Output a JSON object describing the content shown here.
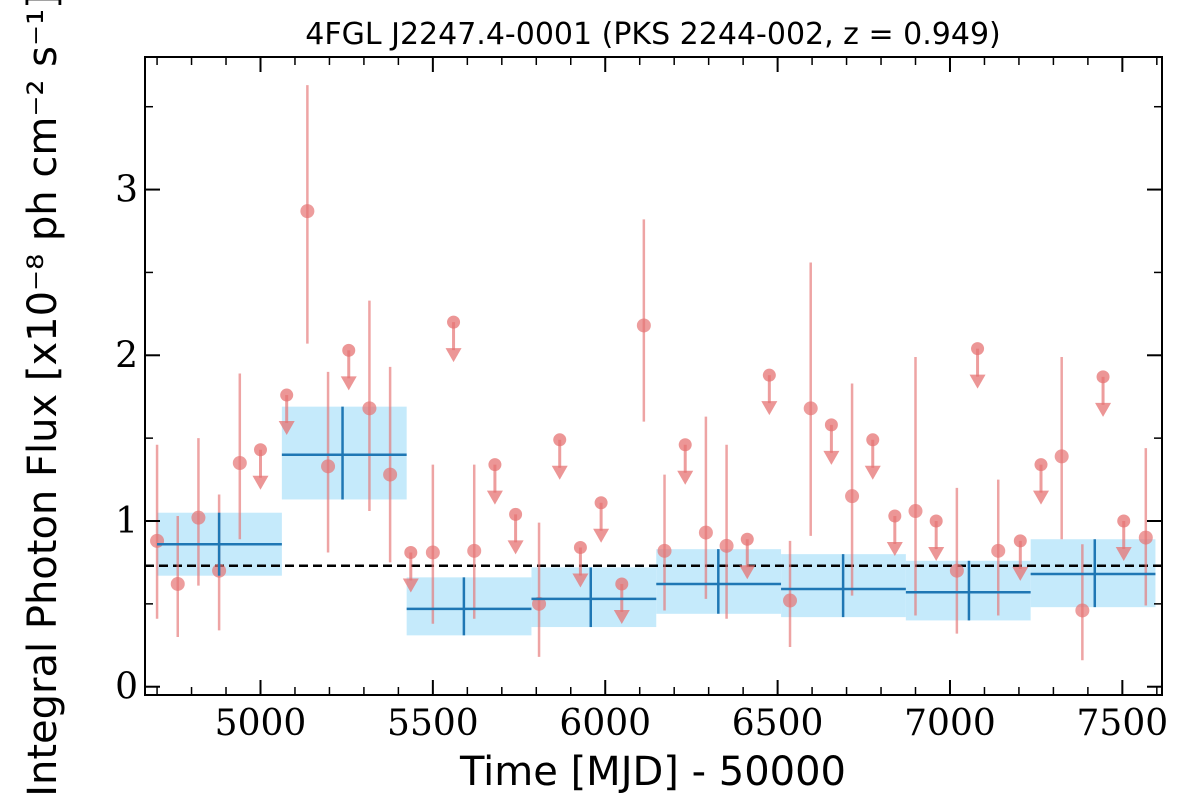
{
  "chart_data": {
    "type": "scatter",
    "title": "4FGL J2247.4-0001 (PKS 2244-002, z = 0.949)",
    "xlabel": "Time [MJD] - 50000",
    "ylabel": "Integral Photon Flux [x10⁻⁸ ph cm⁻² s⁻¹]",
    "xlim": [
      4665,
      7615
    ],
    "ylim": [
      -0.05,
      3.8
    ],
    "xticks": [
      5000,
      5500,
      6000,
      6500,
      7000,
      7500
    ],
    "yticks": [
      0,
      1,
      2,
      3
    ],
    "mean_flux": 0.73,
    "colors": {
      "points": "#e57373",
      "bins_line": "#1f77b4",
      "bins_band": "#bfe8fb",
      "mean_line": "#000000"
    },
    "binned": [
      {
        "x0": 4700,
        "x1": 5062,
        "xc": 4880,
        "y": 0.86,
        "ylo": 0.67,
        "yhi": 1.05
      },
      {
        "x0": 5062,
        "x1": 5424,
        "xc": 5238,
        "y": 1.4,
        "ylo": 1.13,
        "yhi": 1.69
      },
      {
        "x0": 5424,
        "x1": 5786,
        "xc": 5590,
        "y": 0.47,
        "ylo": 0.31,
        "yhi": 0.66
      },
      {
        "x0": 5786,
        "x1": 6148,
        "xc": 5958,
        "y": 0.53,
        "ylo": 0.36,
        "yhi": 0.72
      },
      {
        "x0": 6148,
        "x1": 6510,
        "xc": 6328,
        "y": 0.62,
        "ylo": 0.44,
        "yhi": 0.83
      },
      {
        "x0": 6510,
        "x1": 6872,
        "xc": 6690,
        "y": 0.59,
        "ylo": 0.42,
        "yhi": 0.8
      },
      {
        "x0": 6872,
        "x1": 7234,
        "xc": 7055,
        "y": 0.57,
        "ylo": 0.4,
        "yhi": 0.76
      },
      {
        "x0": 7234,
        "x1": 7596,
        "xc": 7420,
        "y": 0.68,
        "ylo": 0.48,
        "yhi": 0.89
      }
    ],
    "points": [
      {
        "x": 4700,
        "y": 0.88,
        "ylo": 0.41,
        "yhi": 1.46
      },
      {
        "x": 4760,
        "y": 0.62,
        "ylo": 0.3,
        "yhi": 1.03
      },
      {
        "x": 4820,
        "y": 1.02,
        "ylo": 0.61,
        "yhi": 1.5
      },
      {
        "x": 4880,
        "y": 0.7,
        "ylo": 0.34,
        "yhi": 1.16
      },
      {
        "x": 4940,
        "y": 1.35,
        "ylo": 0.89,
        "yhi": 1.89
      },
      {
        "x": 5000,
        "y": 1.43,
        "ul": true
      },
      {
        "x": 5076,
        "y": 1.76,
        "ul": true
      },
      {
        "x": 5136,
        "y": 2.87,
        "ylo": 2.07,
        "yhi": 3.63
      },
      {
        "x": 5196,
        "y": 1.33,
        "ylo": 0.81,
        "yhi": 1.9
      },
      {
        "x": 5256,
        "y": 2.03,
        "ul": true
      },
      {
        "x": 5316,
        "y": 1.68,
        "ylo": 1.06,
        "yhi": 2.33
      },
      {
        "x": 5376,
        "y": 1.28,
        "ylo": 0.75,
        "yhi": 1.93
      },
      {
        "x": 5436,
        "y": 0.81,
        "ul": true
      },
      {
        "x": 5500,
        "y": 0.81,
        "ylo": 0.38,
        "yhi": 1.34
      },
      {
        "x": 5560,
        "y": 2.2,
        "ul": true
      },
      {
        "x": 5620,
        "y": 0.82,
        "ylo": 0.41,
        "yhi": 1.34
      },
      {
        "x": 5680,
        "y": 1.34,
        "ul": true
      },
      {
        "x": 5740,
        "y": 1.04,
        "ul": true
      },
      {
        "x": 5808,
        "y": 0.5,
        "ylo": 0.18,
        "yhi": 0.99
      },
      {
        "x": 5868,
        "y": 1.49,
        "ul": true
      },
      {
        "x": 5928,
        "y": 0.84,
        "ul": true
      },
      {
        "x": 5988,
        "y": 1.11,
        "ul": true
      },
      {
        "x": 6048,
        "y": 0.62,
        "ul": true
      },
      {
        "x": 6112,
        "y": 2.18,
        "ylo": 1.6,
        "yhi": 2.82
      },
      {
        "x": 6172,
        "y": 0.82,
        "ylo": 0.46,
        "yhi": 1.28
      },
      {
        "x": 6232,
        "y": 1.46,
        "ul": true
      },
      {
        "x": 6292,
        "y": 0.93,
        "ylo": 0.53,
        "yhi": 1.63
      },
      {
        "x": 6352,
        "y": 0.85,
        "ylo": 0.41,
        "yhi": 1.46
      },
      {
        "x": 6412,
        "y": 0.89,
        "ul": true
      },
      {
        "x": 6476,
        "y": 1.88,
        "ul": true
      },
      {
        "x": 6536,
        "y": 0.52,
        "ylo": 0.24,
        "yhi": 0.88
      },
      {
        "x": 6596,
        "y": 1.68,
        "ylo": 0.91,
        "yhi": 2.56
      },
      {
        "x": 6656,
        "y": 1.58,
        "ul": true
      },
      {
        "x": 6716,
        "y": 1.15,
        "ylo": 0.55,
        "yhi": 1.83
      },
      {
        "x": 6776,
        "y": 1.49,
        "ul": true
      },
      {
        "x": 6840,
        "y": 1.03,
        "ul": true
      },
      {
        "x": 6900,
        "y": 1.06,
        "ylo": 0.43,
        "yhi": 1.99
      },
      {
        "x": 6960,
        "y": 1.0,
        "ul": true
      },
      {
        "x": 7020,
        "y": 0.7,
        "ylo": 0.32,
        "yhi": 1.2
      },
      {
        "x": 7080,
        "y": 2.04,
        "ul": true
      },
      {
        "x": 7140,
        "y": 0.82,
        "ylo": 0.43,
        "yhi": 1.25
      },
      {
        "x": 7204,
        "y": 0.88,
        "ul": true
      },
      {
        "x": 7264,
        "y": 1.34,
        "ul": true
      },
      {
        "x": 7324,
        "y": 1.39,
        "ylo": 0.89,
        "yhi": 1.99
      },
      {
        "x": 7384,
        "y": 0.46,
        "ylo": 0.16,
        "yhi": 0.86
      },
      {
        "x": 7444,
        "y": 1.87,
        "ul": true
      },
      {
        "x": 7504,
        "y": 1.0,
        "ul": true
      },
      {
        "x": 7568,
        "y": 0.9,
        "ylo": 0.49,
        "yhi": 1.44
      }
    ]
  }
}
